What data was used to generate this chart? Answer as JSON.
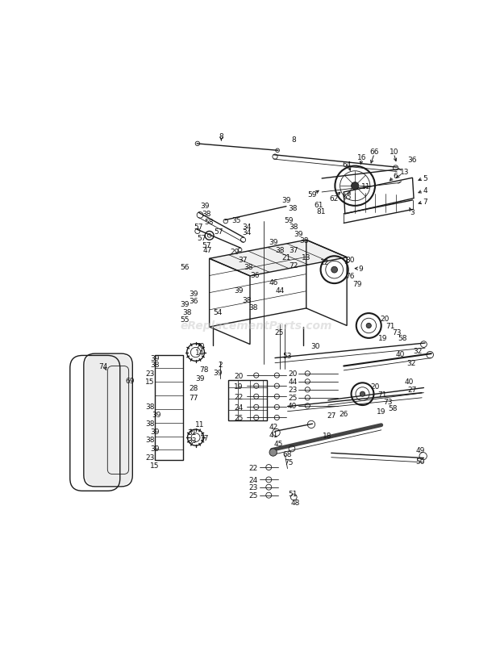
{
  "bg_color": "#ffffff",
  "watermark": "eReplacementParts.com",
  "watermark_color": "#c8c8c8",
  "fig_width": 6.2,
  "fig_height": 8.04,
  "dpi": 100,
  "lc": "#1a1a1a"
}
